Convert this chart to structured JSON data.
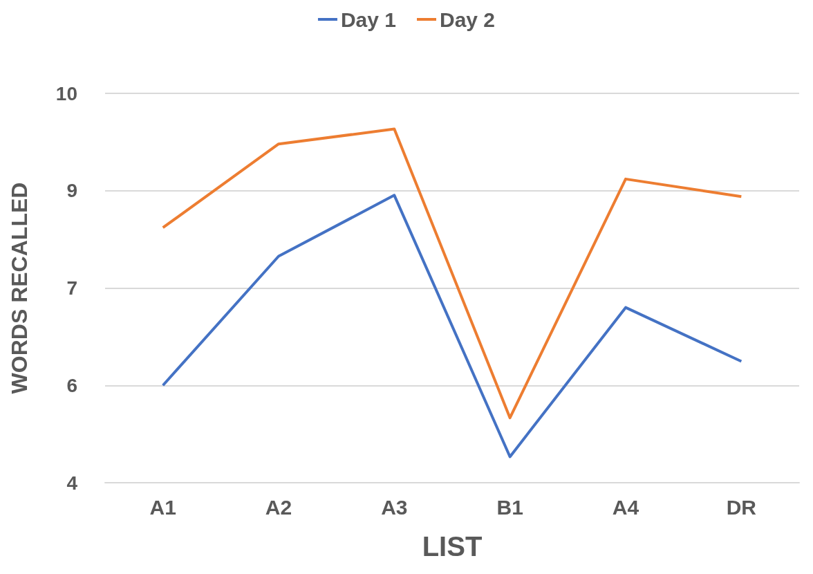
{
  "chart_data": {
    "type": "line",
    "xlabel": "LIST",
    "ylabel": "WORDS RECALLED",
    "categories": [
      "A1",
      "A2",
      "A3",
      "B1",
      "A4",
      "DR"
    ],
    "series": [
      {
        "name": "Day 1",
        "color": "#4472c4",
        "values": [
          5.5,
          7.49,
          8.43,
          4.4,
          6.7,
          5.87
        ]
      },
      {
        "name": "Day 2",
        "color": "#ed7d31",
        "values": [
          7.93,
          9.22,
          9.45,
          5.0,
          8.68,
          8.41
        ]
      }
    ],
    "ylim": [
      4,
      10
    ],
    "yticks": [
      4,
      {
        "value": 5.5,
        "label": "6"
      },
      7,
      {
        "value": 8.5,
        "label": "9"
      },
      10
    ],
    "grid": "y",
    "legend": "top",
    "marker": "none",
    "line_style": "solid"
  }
}
